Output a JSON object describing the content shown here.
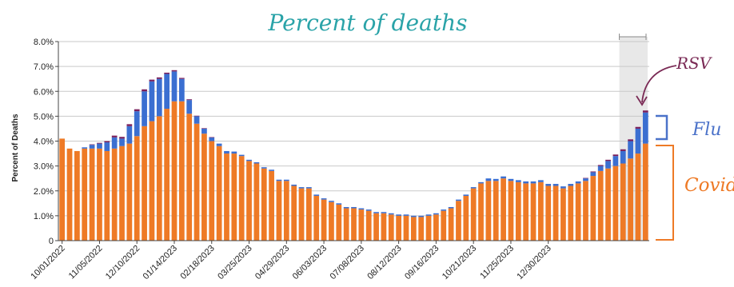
{
  "colors": {
    "covid": "#ee7a26",
    "flu": "#3b6fd1",
    "rsv": "#7a1f5c",
    "grid": "#c9c9c9",
    "axis": "#444444",
    "title": "#2aa3a8",
    "shade": "#d9d9d9",
    "covid_note": "#ee7a26",
    "flu_note": "#4b72c9",
    "rsv_note": "#7a2a55"
  },
  "chart_data": {
    "type": "bar",
    "stacked": true,
    "title": "Percent of deaths",
    "ylabel": "Percent of Deaths",
    "xlabel": "",
    "ylim": [
      0,
      8
    ],
    "y_ticks": [
      0,
      1,
      2,
      3,
      4,
      5,
      6,
      7,
      8
    ],
    "y_tick_labels": [
      "0",
      "1.0%",
      "2.0%",
      "3.0%",
      "4.0%",
      "5.0%",
      "6.0%",
      "7.0%",
      "8.0%"
    ],
    "grid": true,
    "x_tick_labels": [
      "10/01/2022",
      "11/05/2022",
      "12/10/2022",
      "01/14/2023",
      "02/18/2023",
      "03/25/2023",
      "04/29/2023",
      "06/03/2023",
      "07/08/2023",
      "08/12/2023",
      "09/16/2023",
      "10/21/2023",
      "11/25/2023",
      "12/30/2023"
    ],
    "x_tick_every": 5,
    "shaded_last_weeks": 4,
    "series": [
      {
        "name": "Covid",
        "values": [
          4.1,
          3.7,
          3.6,
          3.7,
          3.7,
          3.7,
          3.6,
          3.7,
          3.8,
          3.9,
          4.2,
          4.6,
          4.8,
          5.0,
          5.3,
          5.6,
          5.6,
          5.1,
          4.7,
          4.3,
          4.0,
          3.8,
          3.5,
          3.5,
          3.4,
          3.2,
          3.1,
          2.9,
          2.8,
          2.4,
          2.4,
          2.2,
          2.1,
          2.1,
          1.8,
          1.65,
          1.55,
          1.45,
          1.3,
          1.3,
          1.25,
          1.2,
          1.1,
          1.1,
          1.05,
          1.0,
          1.0,
          0.95,
          0.95,
          1.0,
          1.05,
          1.2,
          1.3,
          1.6,
          1.8,
          2.1,
          2.3,
          2.4,
          2.4,
          2.5,
          2.4,
          2.35,
          2.3,
          2.3,
          2.35,
          2.2,
          2.2,
          2.1,
          2.2,
          2.3,
          2.4,
          2.6,
          2.8,
          2.9,
          3.0,
          3.1,
          3.3,
          3.5,
          3.9
        ]
      },
      {
        "name": "Flu",
        "values": [
          0,
          0,
          0,
          0.05,
          0.15,
          0.2,
          0.35,
          0.45,
          0.3,
          0.7,
          1.0,
          1.4,
          1.6,
          1.5,
          1.4,
          1.2,
          0.9,
          0.55,
          0.3,
          0.2,
          0.15,
          0.1,
          0.1,
          0.08,
          0.05,
          0.05,
          0.05,
          0.05,
          0.05,
          0.05,
          0.05,
          0.05,
          0.05,
          0.05,
          0.05,
          0.05,
          0.05,
          0.05,
          0.05,
          0.05,
          0.05,
          0.05,
          0.05,
          0.05,
          0.05,
          0.05,
          0.05,
          0.05,
          0.05,
          0.05,
          0.05,
          0.05,
          0.05,
          0.05,
          0.05,
          0.05,
          0.05,
          0.1,
          0.08,
          0.08,
          0.08,
          0.08,
          0.08,
          0.08,
          0.08,
          0.08,
          0.08,
          0.08,
          0.08,
          0.08,
          0.1,
          0.15,
          0.2,
          0.3,
          0.4,
          0.5,
          0.7,
          1.0,
          1.25
        ]
      },
      {
        "name": "RSV",
        "values": [
          0,
          0,
          0,
          0,
          0.02,
          0.03,
          0.05,
          0.07,
          0.07,
          0.08,
          0.08,
          0.08,
          0.07,
          0.06,
          0.05,
          0.05,
          0.04,
          0.03,
          0.02,
          0.02,
          0.01,
          0,
          0,
          0,
          0,
          0,
          0,
          0,
          0,
          0,
          0,
          0,
          0,
          0,
          0,
          0,
          0,
          0,
          0,
          0,
          0,
          0,
          0,
          0,
          0,
          0,
          0,
          0,
          0,
          0,
          0,
          0,
          0,
          0,
          0,
          0,
          0,
          0,
          0,
          0,
          0,
          0,
          0,
          0,
          0,
          0,
          0,
          0,
          0,
          0,
          0.02,
          0.03,
          0.04,
          0.05,
          0.06,
          0.07,
          0.07,
          0.07,
          0.08
        ]
      }
    ]
  },
  "annotations": {
    "title": "Percent of deaths",
    "rsv": "RSV",
    "flu": "Flu",
    "covid": "Covid"
  }
}
